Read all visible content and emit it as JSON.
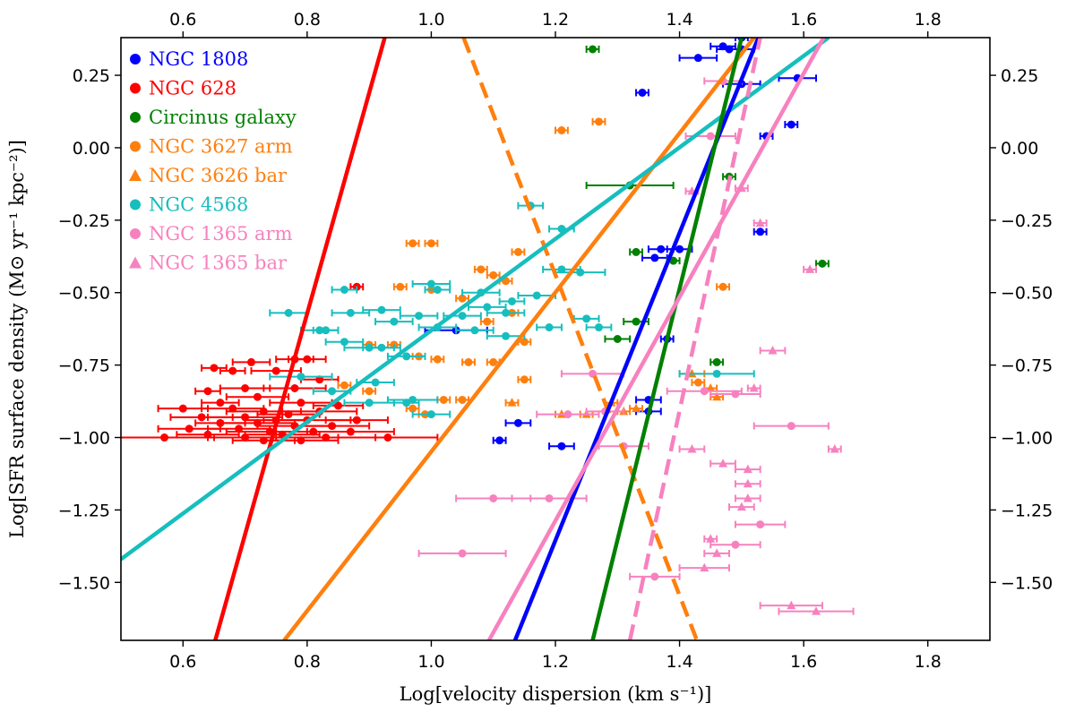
{
  "chart_data": {
    "type": "scatter",
    "xlabel": "Log[velocity dispersion (km s⁻¹)]",
    "ylabel": "Log[SFR surface density (M⊙ yr⁻¹ kpc⁻²)]",
    "xlim": [
      0.5,
      1.9
    ],
    "ylim": [
      -1.7,
      0.38
    ],
    "xticks": [
      0.6,
      0.8,
      1.0,
      1.2,
      1.4,
      1.6,
      1.8
    ],
    "yticks": [
      -1.5,
      -1.25,
      -1.0,
      -0.75,
      -0.5,
      -0.25,
      0.0,
      0.25
    ],
    "xtick_labels": [
      "0.6",
      "0.8",
      "1.0",
      "1.2",
      "1.4",
      "1.6",
      "1.8"
    ],
    "ytick_labels": [
      "−1.50",
      "−1.25",
      "−1.00",
      "−0.75",
      "−0.50",
      "−0.25",
      "0.00",
      "0.25"
    ],
    "grid": false,
    "legend_position": "top-left",
    "series": [
      {
        "name": "NGC 1808",
        "color": "#0000ff",
        "marker": "circle",
        "points": [
          [
            1.5,
            0.38,
            0.01
          ],
          [
            1.47,
            0.35,
            0.02
          ],
          [
            1.5,
            0.34,
            0.02
          ],
          [
            1.48,
            0.34,
            0.02
          ],
          [
            1.43,
            0.31,
            0.03
          ],
          [
            1.59,
            0.24,
            0.03
          ],
          [
            1.5,
            0.22,
            0.03
          ],
          [
            1.34,
            0.19,
            0.01
          ],
          [
            1.58,
            0.08,
            0.01
          ],
          [
            1.54,
            0.04,
            0.01
          ],
          [
            1.53,
            -0.29,
            0.01
          ],
          [
            1.37,
            -0.35,
            0.02
          ],
          [
            1.4,
            -0.35,
            0.02
          ],
          [
            1.36,
            -0.38,
            0.02
          ],
          [
            1.04,
            -0.63,
            0.05
          ],
          [
            1.38,
            -0.66,
            0.01
          ],
          [
            1.35,
            -0.87,
            0.02
          ],
          [
            1.35,
            -0.91,
            0.02
          ],
          [
            1.14,
            -0.95,
            0.02
          ],
          [
            1.11,
            -1.01,
            0.01
          ],
          [
            1.21,
            -1.03,
            0.02
          ]
        ]
      },
      {
        "name": "NGC 628",
        "color": "#ff0000",
        "marker": "circle",
        "points": [
          [
            0.88,
            -0.48,
            0.01
          ],
          [
            0.65,
            -0.76,
            0.02
          ],
          [
            0.71,
            -0.74,
            0.03
          ],
          [
            0.78,
            -0.73,
            0.03
          ],
          [
            0.8,
            -0.73,
            0.03
          ],
          [
            0.68,
            -0.77,
            0.02
          ],
          [
            0.75,
            -0.77,
            0.04
          ],
          [
            0.82,
            -0.8,
            0.03
          ],
          [
            0.7,
            -0.83,
            0.04
          ],
          [
            0.78,
            -0.83,
            0.05
          ],
          [
            0.64,
            -0.84,
            0.02
          ],
          [
            0.72,
            -0.86,
            0.05
          ],
          [
            0.66,
            -0.88,
            0.03
          ],
          [
            0.79,
            -0.88,
            0.05
          ],
          [
            0.85,
            -0.89,
            0.04
          ],
          [
            0.6,
            -0.9,
            0.04
          ],
          [
            0.68,
            -0.9,
            0.05
          ],
          [
            0.73,
            -0.91,
            0.06
          ],
          [
            0.82,
            -0.91,
            0.06
          ],
          [
            0.77,
            -0.92,
            0.05
          ],
          [
            0.63,
            -0.93,
            0.05
          ],
          [
            0.7,
            -0.93,
            0.06
          ],
          [
            0.8,
            -0.94,
            0.07
          ],
          [
            0.75,
            -0.94,
            0.05
          ],
          [
            0.88,
            -0.94,
            0.05
          ],
          [
            0.66,
            -0.95,
            0.04
          ],
          [
            0.72,
            -0.95,
            0.06
          ],
          [
            0.78,
            -0.96,
            0.06
          ],
          [
            0.84,
            -0.96,
            0.06
          ],
          [
            0.61,
            -0.97,
            0.05
          ],
          [
            0.69,
            -0.97,
            0.05
          ],
          [
            0.74,
            -0.98,
            0.07
          ],
          [
            0.81,
            -0.98,
            0.06
          ],
          [
            0.87,
            -0.98,
            0.07
          ],
          [
            0.64,
            -0.99,
            0.05
          ],
          [
            0.76,
            -0.99,
            0.06
          ],
          [
            0.7,
            -1.0,
            0.06
          ],
          [
            0.57,
            -1.0,
            0.08
          ],
          [
            0.83,
            -1.0,
            0.08
          ],
          [
            0.93,
            -1.0,
            0.08
          ],
          [
            0.79,
            -1.01,
            0.06
          ],
          [
            0.73,
            -1.01,
            0.05
          ]
        ]
      },
      {
        "name": "Circinus galaxy",
        "color": "#008000",
        "marker": "circle",
        "points": [
          [
            1.26,
            0.34,
            0.01
          ],
          [
            1.48,
            -0.1,
            0.01
          ],
          [
            1.32,
            -0.13,
            0.07
          ],
          [
            1.63,
            -0.4,
            0.01
          ],
          [
            1.33,
            -0.36,
            0.01
          ],
          [
            1.39,
            -0.39,
            0.01
          ],
          [
            1.33,
            -0.6,
            0.02
          ],
          [
            1.3,
            -0.66,
            0.02
          ],
          [
            1.46,
            -0.74,
            0.01
          ]
        ]
      },
      {
        "name": "NGC 3627 arm",
        "color": "#ff7f0e",
        "marker": "circle",
        "points": [
          [
            1.21,
            0.06,
            0.01
          ],
          [
            1.27,
            0.09,
            0.01
          ],
          [
            0.97,
            -0.33,
            0.01
          ],
          [
            1.0,
            -0.33,
            0.01
          ],
          [
            1.14,
            -0.36,
            0.01
          ],
          [
            1.08,
            -0.42,
            0.01
          ],
          [
            1.47,
            -0.48,
            0.01
          ],
          [
            1.1,
            -0.44,
            0.01
          ],
          [
            1.12,
            -0.46,
            0.01
          ],
          [
            0.95,
            -0.48,
            0.01
          ],
          [
            1.0,
            -0.49,
            0.01
          ],
          [
            1.05,
            -0.52,
            0.01
          ],
          [
            1.13,
            -0.57,
            0.01
          ],
          [
            1.09,
            -0.6,
            0.01
          ],
          [
            1.15,
            -0.67,
            0.01
          ],
          [
            0.9,
            -0.68,
            0.01
          ],
          [
            0.94,
            -0.68,
            0.01
          ],
          [
            0.98,
            -0.72,
            0.01
          ],
          [
            1.01,
            -0.73,
            0.01
          ],
          [
            1.06,
            -0.74,
            0.01
          ],
          [
            1.1,
            -0.74,
            0.01
          ],
          [
            1.15,
            -0.8,
            0.01
          ],
          [
            0.86,
            -0.82,
            0.01
          ],
          [
            0.9,
            -0.84,
            0.01
          ],
          [
            1.05,
            -0.87,
            0.01
          ],
          [
            0.97,
            -0.9,
            0.01
          ],
          [
            0.99,
            -0.92,
            0.01
          ],
          [
            1.02,
            -0.87,
            0.01
          ],
          [
            1.43,
            -0.81,
            0.01
          ]
        ]
      },
      {
        "name": "NGC 3626 bar",
        "color": "#ff7f0e",
        "marker": "triangle",
        "points": [
          [
            1.42,
            -0.78,
            0.02
          ],
          [
            1.45,
            -0.83,
            0.01
          ],
          [
            1.46,
            -0.86,
            0.01
          ],
          [
            1.13,
            -0.88,
            0.01
          ],
          [
            1.29,
            -0.88,
            0.01
          ],
          [
            1.31,
            -0.91,
            0.01
          ],
          [
            1.21,
            -0.92,
            0.01
          ],
          [
            1.25,
            -0.92,
            0.01
          ],
          [
            1.33,
            -0.9,
            0.01
          ]
        ]
      },
      {
        "name": "NGC 4568",
        "color": "#17bebe",
        "marker": "circle",
        "points": [
          [
            1.21,
            -0.28,
            0.02
          ],
          [
            1.16,
            -0.2,
            0.02
          ],
          [
            0.86,
            -0.49,
            0.02
          ],
          [
            0.77,
            -0.57,
            0.03
          ],
          [
            0.87,
            -0.57,
            0.03
          ],
          [
            0.92,
            -0.56,
            0.03
          ],
          [
            1.0,
            -0.47,
            0.03
          ],
          [
            1.01,
            -0.49,
            0.02
          ],
          [
            1.08,
            -0.5,
            0.03
          ],
          [
            1.13,
            -0.53,
            0.02
          ],
          [
            1.17,
            -0.51,
            0.03
          ],
          [
            1.21,
            -0.42,
            0.03
          ],
          [
            1.24,
            -0.43,
            0.04
          ],
          [
            1.09,
            -0.55,
            0.03
          ],
          [
            1.12,
            -0.57,
            0.03
          ],
          [
            1.05,
            -0.58,
            0.03
          ],
          [
            0.98,
            -0.58,
            0.03
          ],
          [
            0.94,
            -0.6,
            0.03
          ],
          [
            1.01,
            -0.62,
            0.03
          ],
          [
            1.07,
            -0.63,
            0.03
          ],
          [
            1.12,
            -0.65,
            0.03
          ],
          [
            1.19,
            -0.62,
            0.02
          ],
          [
            1.25,
            -0.59,
            0.02
          ],
          [
            1.27,
            -0.62,
            0.02
          ],
          [
            0.82,
            -0.63,
            0.03
          ],
          [
            0.86,
            -0.67,
            0.03
          ],
          [
            0.9,
            -0.69,
            0.04
          ],
          [
            0.96,
            -0.72,
            0.03
          ],
          [
            0.79,
            -0.79,
            0.05
          ],
          [
            0.84,
            -0.84,
            0.03
          ],
          [
            0.91,
            -0.81,
            0.03
          ],
          [
            0.97,
            -0.87,
            0.04
          ],
          [
            0.9,
            -0.88,
            0.04
          ],
          [
            0.96,
            -0.88,
            0.02
          ],
          [
            1.0,
            -0.92,
            0.03
          ],
          [
            1.46,
            -0.78,
            0.06
          ],
          [
            0.83,
            -0.63,
            0.02
          ],
          [
            0.92,
            -0.69,
            0.03
          ]
        ]
      },
      {
        "name": "NGC 1365 arm",
        "color": "#f781bf",
        "marker": "circle",
        "points": [
          [
            1.47,
            0.23,
            0.03
          ],
          [
            1.45,
            0.04,
            0.04
          ],
          [
            1.26,
            -0.78,
            0.05
          ],
          [
            1.44,
            -0.84,
            0.06
          ],
          [
            1.49,
            -0.85,
            0.04
          ],
          [
            1.58,
            -0.96,
            0.06
          ],
          [
            1.22,
            -0.92,
            0.05
          ],
          [
            1.1,
            -1.21,
            0.06
          ],
          [
            1.19,
            -1.21,
            0.06
          ],
          [
            1.53,
            -1.3,
            0.04
          ],
          [
            1.49,
            -1.37,
            0.04
          ],
          [
            1.05,
            -1.4,
            0.07
          ],
          [
            1.36,
            -1.48,
            0.04
          ],
          [
            1.28,
            -0.91,
            0.03
          ],
          [
            1.31,
            -1.03,
            0.04
          ]
        ]
      },
      {
        "name": "NGC 1365 bar",
        "color": "#f781bf",
        "marker": "triangle",
        "points": [
          [
            1.42,
            -0.15,
            0.01
          ],
          [
            1.5,
            -0.14,
            0.01
          ],
          [
            1.53,
            -0.26,
            0.01
          ],
          [
            1.61,
            -0.42,
            0.01
          ],
          [
            1.55,
            -0.7,
            0.02
          ],
          [
            1.52,
            -0.83,
            0.01
          ],
          [
            1.42,
            -1.04,
            0.02
          ],
          [
            1.51,
            -1.11,
            0.02
          ],
          [
            1.47,
            -1.09,
            0.02
          ],
          [
            1.51,
            -1.16,
            0.02
          ],
          [
            1.5,
            -1.24,
            0.02
          ],
          [
            1.45,
            -1.35,
            0.01
          ],
          [
            1.46,
            -1.4,
            0.02
          ],
          [
            1.65,
            -1.04,
            0.01
          ],
          [
            1.44,
            -1.45,
            0.04
          ],
          [
            1.58,
            -1.58,
            0.05
          ],
          [
            1.62,
            -1.6,
            0.06
          ],
          [
            1.51,
            -1.21,
            0.02
          ]
        ]
      }
    ],
    "fit_lines": [
      {
        "name": "NGC 628 fit",
        "color": "#ff0000",
        "dash": false,
        "points": [
          [
            0.652,
            -1.7
          ],
          [
            0.925,
            0.38
          ]
        ]
      },
      {
        "name": "NGC 3627 fit",
        "color": "#ff7f0e",
        "dash": false,
        "points": [
          [
            0.763,
            -1.7
          ],
          [
            1.52,
            0.38
          ]
        ]
      },
      {
        "name": "NGC 3626 fit",
        "color": "#ff7f0e",
        "dash": true,
        "points": [
          [
            1.052,
            0.38
          ],
          [
            1.428,
            -1.7
          ]
        ]
      },
      {
        "name": "NGC 4568 fit",
        "color": "#17bebe",
        "dash": false,
        "points": [
          [
            0.5,
            -1.42
          ],
          [
            1.64,
            0.38
          ]
        ]
      },
      {
        "name": "NGC 1808 fit",
        "color": "#0000ff",
        "dash": false,
        "points": [
          [
            1.135,
            -1.7
          ],
          [
            1.527,
            0.38
          ]
        ]
      },
      {
        "name": "Circinus fit",
        "color": "#008000",
        "dash": false,
        "points": [
          [
            1.26,
            -1.7
          ],
          [
            1.5,
            0.38
          ]
        ]
      },
      {
        "name": "NGC 1365 arm fit",
        "color": "#f781bf",
        "dash": false,
        "points": [
          [
            1.093,
            -1.7
          ],
          [
            1.632,
            0.38
          ]
        ]
      },
      {
        "name": "NGC 1365 bar fit",
        "color": "#f781bf",
        "dash": true,
        "points": [
          [
            1.32,
            -1.7
          ],
          [
            1.53,
            0.38
          ]
        ]
      }
    ]
  }
}
